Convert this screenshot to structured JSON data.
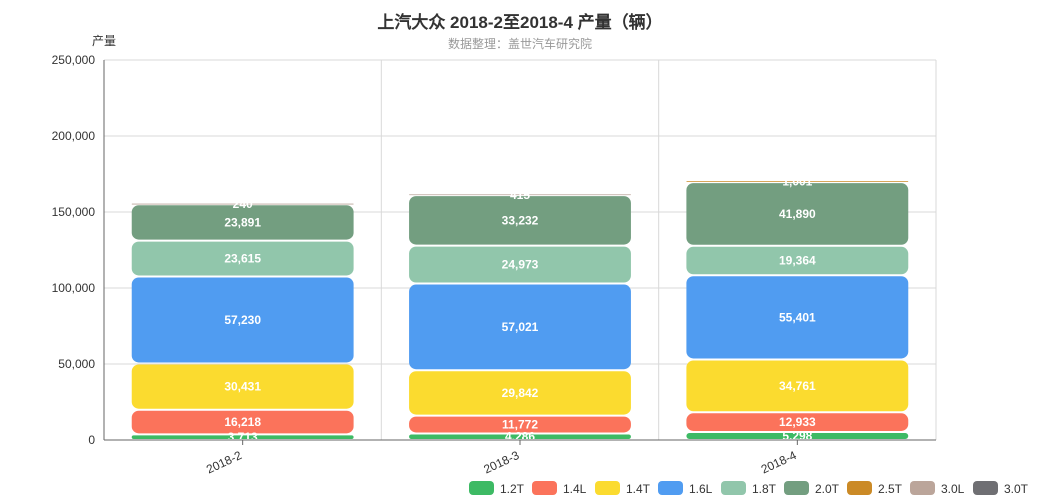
{
  "chart_data": {
    "type": "bar",
    "stacked": true,
    "title": "上汽大众 2018-2至2018-4 产量（辆）",
    "subtitle": "数据整理：盖世汽车研究院",
    "ylabel": "产量",
    "xlabel": "",
    "ylim": [
      0,
      250000
    ],
    "yticks": [
      0,
      50000,
      100000,
      150000,
      200000,
      250000
    ],
    "ytick_labels": [
      "0",
      "50,000",
      "100,000",
      "150,000",
      "200,000",
      "250,000"
    ],
    "grid": true,
    "legend_position": "bottom-right",
    "categories": [
      "2018-2",
      "2018-3",
      "2018-4"
    ],
    "series": [
      {
        "name": "1.2T",
        "color": "#3dba64",
        "values": [
          3713,
          4286,
          5298
        ],
        "labels": [
          "3,713",
          "4,286",
          "5,298"
        ]
      },
      {
        "name": "1.4L",
        "color": "#fb735b",
        "values": [
          16218,
          11772,
          12933
        ],
        "labels": [
          "16,218",
          "11,772",
          "12,933"
        ]
      },
      {
        "name": "1.4T",
        "color": "#fbdb2f",
        "values": [
          30431,
          29842,
          34761
        ],
        "labels": [
          "30,431",
          "29,842",
          "34,761"
        ]
      },
      {
        "name": "1.6L",
        "color": "#509cf1",
        "values": [
          57230,
          57021,
          55401
        ],
        "labels": [
          "57,230",
          "57,021",
          "55,401"
        ]
      },
      {
        "name": "1.8T",
        "color": "#91c6ab",
        "values": [
          23615,
          24973,
          19364
        ],
        "labels": [
          "23,615",
          "24,973",
          "19,364"
        ]
      },
      {
        "name": "2.0T",
        "color": "#739e80",
        "values": [
          23891,
          33232,
          41890
        ],
        "labels": [
          "23,891",
          "33,232",
          "41,890"
        ]
      },
      {
        "name": "2.5T",
        "color": "#cb8a26",
        "values": [
          0,
          0,
          1001
        ],
        "labels": [
          "",
          "",
          "1,001"
        ]
      },
      {
        "name": "3.0L",
        "color": "#bba59a",
        "values": [
          240,
          415,
          0
        ],
        "labels": [
          "240",
          "415",
          ""
        ]
      },
      {
        "name": "3.0T",
        "color": "#6f6f73",
        "values": [
          0,
          0,
          0
        ],
        "labels": [
          "",
          "",
          ""
        ]
      }
    ]
  }
}
